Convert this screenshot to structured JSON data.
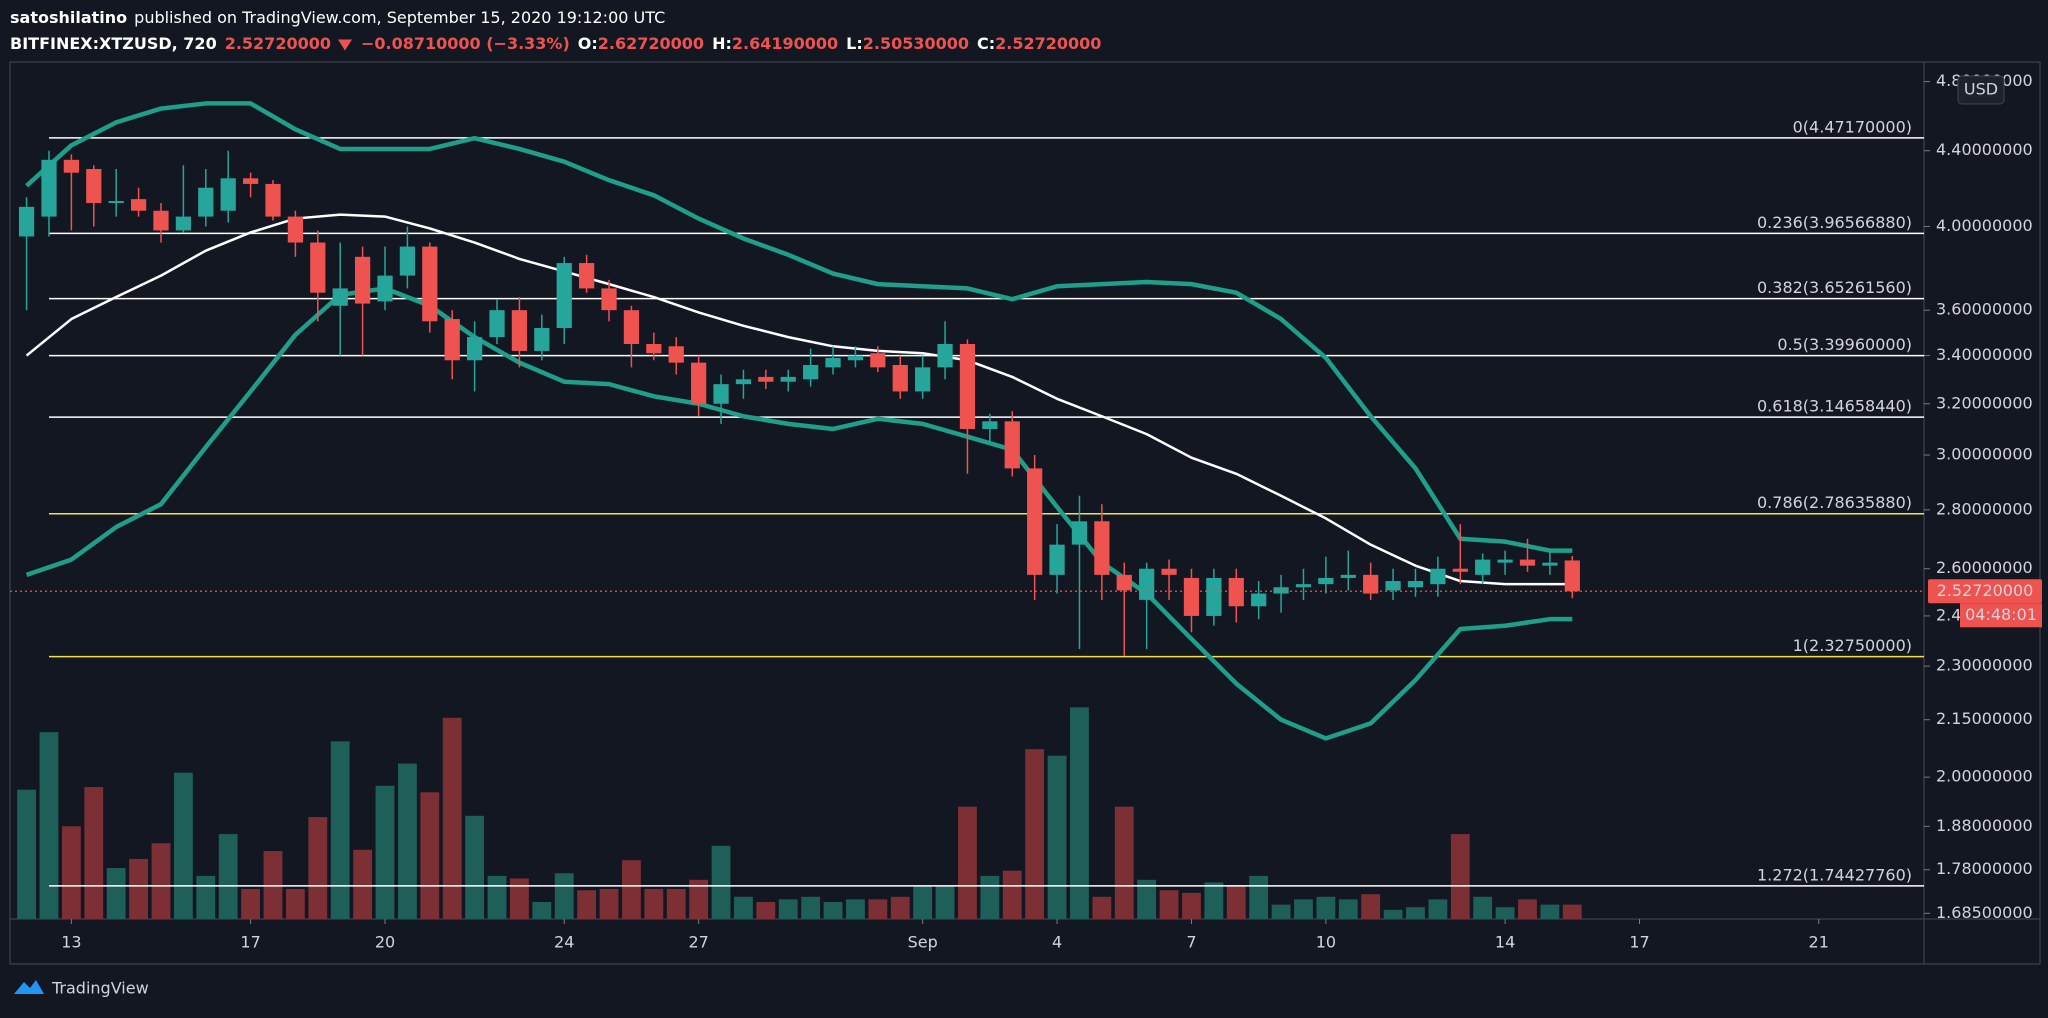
{
  "chart_data": {
    "type": "candlestick",
    "header": {
      "author": "satoshilatino",
      "published": "published on TradingView.com, September 15, 2020 19:12:00 UTC",
      "symbol": "BITFINEX:XTZUSD, 720",
      "last": "2.52720000",
      "change": "−0.08710000 (−3.33%)",
      "ohlc": [
        {
          "label": "O:",
          "value": "2.62720000"
        },
        {
          "label": "H:",
          "value": "2.64190000"
        },
        {
          "label": "L:",
          "value": "2.50530000"
        },
        {
          "label": "C:",
          "value": "2.52720000"
        }
      ]
    },
    "currency": "USD",
    "log_scale": true,
    "grid": false,
    "up_color": "#26a69a",
    "down_color": "#ef5350",
    "volume_up_color": "#1f5f5a",
    "volume_down_color": "#7c3035",
    "xlim": [
      -0.74,
      84.7
    ],
    "ylim": [
      1.673,
      4.92
    ],
    "volume_lim": [
      0,
      656
    ],
    "xticks": [
      {
        "value": 2,
        "label": "13"
      },
      {
        "value": 10,
        "label": "17"
      },
      {
        "value": 16,
        "label": "20"
      },
      {
        "value": 24,
        "label": "24"
      },
      {
        "value": 30,
        "label": "27"
      },
      {
        "value": 40,
        "label": "Sep"
      },
      {
        "value": 46,
        "label": "4"
      },
      {
        "value": 52,
        "label": "7"
      },
      {
        "value": 58,
        "label": "10"
      },
      {
        "value": 66,
        "label": "14"
      },
      {
        "value": 72,
        "label": "17"
      },
      {
        "value": 80,
        "label": "21"
      }
    ],
    "yticks": [
      {
        "value": 4.8,
        "label": "4.80000000"
      },
      {
        "value": 4.4,
        "label": "4.40000000"
      },
      {
        "value": 4.0,
        "label": "4.00000000"
      },
      {
        "value": 3.6,
        "label": "3.60000000"
      },
      {
        "value": 3.4,
        "label": "3.40000000"
      },
      {
        "value": 3.2,
        "label": "3.20000000"
      },
      {
        "value": 3.0,
        "label": "3.00000000"
      },
      {
        "value": 2.8,
        "label": "2.80000000"
      },
      {
        "value": 2.6,
        "label": "2.60000000"
      },
      {
        "value": 2.45,
        "label": "2.45000000"
      },
      {
        "value": 2.3,
        "label": "2.30000000"
      },
      {
        "value": 2.15,
        "label": "2.15000000"
      },
      {
        "value": 2.0,
        "label": "2.00000000"
      },
      {
        "value": 1.88,
        "label": "1.88000000"
      },
      {
        "value": 1.78,
        "label": "1.78000000"
      },
      {
        "value": 1.685,
        "label": "1.68500000"
      }
    ],
    "candles": {
      "open": [
        3.95,
        4.05,
        4.35,
        4.3,
        4.12,
        4.14,
        4.08,
        3.98,
        4.05,
        4.08,
        4.25,
        4.22,
        4.05,
        3.92,
        3.62,
        3.85,
        3.64,
        3.76,
        3.9,
        3.56,
        3.38,
        3.48,
        3.6,
        3.42,
        3.52,
        3.82,
        3.7,
        3.6,
        3.45,
        3.44,
        3.37,
        3.2,
        3.28,
        3.31,
        3.29,
        3.3,
        3.35,
        3.38,
        3.41,
        3.36,
        3.25,
        3.35,
        3.45,
        3.1,
        3.13,
        2.95,
        2.58,
        2.68,
        2.76,
        2.58,
        2.5,
        2.6,
        2.57,
        2.45,
        2.57,
        2.48,
        2.52,
        2.54,
        2.55,
        2.57,
        2.58,
        2.53,
        2.54,
        2.55,
        2.6,
        2.58,
        2.62,
        2.63,
        2.61,
        2.6272
      ],
      "high": [
        4.15,
        4.4,
        4.38,
        4.32,
        4.3,
        4.2,
        4.12,
        4.32,
        4.3,
        4.4,
        4.28,
        4.24,
        4.08,
        3.98,
        3.92,
        3.9,
        3.9,
        4.0,
        3.92,
        3.6,
        3.55,
        3.65,
        3.66,
        3.58,
        3.85,
        3.86,
        3.74,
        3.62,
        3.5,
        3.48,
        3.4,
        3.32,
        3.34,
        3.34,
        3.34,
        3.43,
        3.44,
        3.44,
        3.44,
        3.4,
        3.4,
        3.55,
        3.47,
        3.16,
        3.17,
        3.0,
        2.75,
        2.85,
        2.82,
        2.62,
        2.62,
        2.63,
        2.6,
        2.6,
        2.6,
        2.56,
        2.58,
        2.6,
        2.64,
        2.66,
        2.62,
        2.6,
        2.6,
        2.64,
        2.75,
        2.65,
        2.66,
        2.7,
        2.66,
        2.6419
      ],
      "low": [
        3.6,
        3.95,
        3.98,
        4.0,
        4.05,
        4.05,
        3.92,
        3.97,
        4.0,
        4.02,
        4.15,
        4.03,
        3.85,
        3.55,
        3.4,
        3.4,
        3.6,
        3.7,
        3.5,
        3.3,
        3.25,
        3.45,
        3.35,
        3.38,
        3.45,
        3.68,
        3.55,
        3.35,
        3.38,
        3.32,
        3.15,
        3.12,
        3.22,
        3.26,
        3.25,
        3.27,
        3.32,
        3.35,
        3.33,
        3.22,
        3.22,
        3.3,
        2.93,
        3.05,
        2.92,
        2.5,
        2.52,
        2.35,
        2.5,
        2.33,
        2.35,
        2.5,
        2.4,
        2.42,
        2.43,
        2.44,
        2.46,
        2.5,
        2.52,
        2.53,
        2.5,
        2.5,
        2.51,
        2.51,
        2.55,
        2.55,
        2.58,
        2.59,
        2.58,
        2.5053
      ],
      "close": [
        4.1,
        4.35,
        4.28,
        4.12,
        4.13,
        4.08,
        3.98,
        4.05,
        4.2,
        4.25,
        4.22,
        4.05,
        3.92,
        3.68,
        3.7,
        3.63,
        3.76,
        3.9,
        3.55,
        3.38,
        3.48,
        3.6,
        3.42,
        3.52,
        3.82,
        3.7,
        3.6,
        3.45,
        3.41,
        3.37,
        3.2,
        3.28,
        3.3,
        3.29,
        3.31,
        3.36,
        3.39,
        3.4,
        3.35,
        3.25,
        3.35,
        3.45,
        3.1,
        3.13,
        2.95,
        2.58,
        2.68,
        2.76,
        2.58,
        2.53,
        2.6,
        2.58,
        2.45,
        2.57,
        2.48,
        2.52,
        2.54,
        2.55,
        2.57,
        2.58,
        2.52,
        2.56,
        2.56,
        2.6,
        2.59,
        2.63,
        2.63,
        2.61,
        2.62,
        2.5272
      ],
      "volume": [
        99,
        143,
        71,
        101,
        39,
        46,
        58,
        112,
        33,
        65,
        23,
        52,
        23,
        78,
        136,
        53,
        102,
        119,
        97,
        154,
        79,
        33,
        31,
        13,
        35,
        22,
        23,
        45,
        23,
        23,
        30,
        56,
        17,
        13,
        15,
        17,
        13,
        15,
        15,
        17,
        25,
        25,
        86,
        33,
        37,
        130,
        125,
        162,
        17,
        86,
        30,
        22,
        20,
        28,
        26,
        33,
        11,
        15,
        17,
        15,
        19,
        7,
        9,
        15,
        65,
        17,
        9,
        15,
        11,
        11
      ]
    },
    "bollinger": {
      "band_color": "#1f9e89",
      "basis_color": "#ffffff",
      "x": [
        0,
        2,
        4,
        6,
        8,
        10,
        12,
        14,
        16,
        18,
        20,
        22,
        24,
        26,
        28,
        30,
        32,
        34,
        36,
        38,
        40,
        42,
        44,
        46,
        48,
        50,
        52,
        54,
        56,
        58,
        60,
        62,
        64,
        66,
        68,
        69
      ],
      "upper": [
        4.21,
        4.43,
        4.56,
        4.64,
        4.67,
        4.67,
        4.52,
        4.41,
        4.41,
        4.41,
        4.47,
        4.41,
        4.34,
        4.24,
        4.16,
        4.04,
        3.94,
        3.86,
        3.77,
        3.72,
        3.71,
        3.7,
        3.65,
        3.71,
        3.72,
        3.73,
        3.72,
        3.68,
        3.56,
        3.39,
        3.15,
        2.95,
        2.7,
        2.69,
        2.66,
        2.66
      ],
      "basis": [
        3.4,
        3.56,
        3.66,
        3.76,
        3.88,
        3.97,
        4.04,
        4.06,
        4.05,
        3.99,
        3.92,
        3.84,
        3.78,
        3.72,
        3.66,
        3.59,
        3.53,
        3.48,
        3.44,
        3.42,
        3.41,
        3.38,
        3.31,
        3.22,
        3.15,
        3.08,
        2.99,
        2.93,
        2.85,
        2.77,
        2.68,
        2.61,
        2.56,
        2.55,
        2.55,
        2.55
      ],
      "lower": [
        2.58,
        2.63,
        2.74,
        2.82,
        3.03,
        3.25,
        3.49,
        3.67,
        3.7,
        3.62,
        3.48,
        3.37,
        3.29,
        3.28,
        3.23,
        3.2,
        3.15,
        3.12,
        3.1,
        3.14,
        3.12,
        3.07,
        3.02,
        2.81,
        2.62,
        2.52,
        2.38,
        2.25,
        2.15,
        2.1,
        2.14,
        2.26,
        2.41,
        2.42,
        2.44,
        2.44
      ]
    },
    "fib_start": 1,
    "fib": [
      {
        "label": "0(4.47170000)",
        "value": 4.4717,
        "color": "#ffffff"
      },
      {
        "label": "0.236(3.96566880)",
        "value": 3.9656688,
        "color": "#ffffff"
      },
      {
        "label": "0.382(3.65261560)",
        "value": 3.6526156,
        "color": "#ffffff"
      },
      {
        "label": "0.5(3.39960000)",
        "value": 3.3996,
        "color": "#ffffff"
      },
      {
        "label": "0.618(3.14658440)",
        "value": 3.1465844,
        "color": "#ffffff"
      },
      {
        "label": "0.786(2.78635880)",
        "value": 2.7863588,
        "color": "#f5e050"
      },
      {
        "label": "1(2.32750000)",
        "value": 2.3275,
        "color": "#f5e050"
      },
      {
        "label": "1.272(1.74427760)",
        "value": 1.7442776,
        "color": "#ffffff"
      }
    ],
    "last_price": {
      "value": 2.5272,
      "label": "2.52720000"
    },
    "countdown": "04:48:01",
    "brand": "TradingView"
  }
}
